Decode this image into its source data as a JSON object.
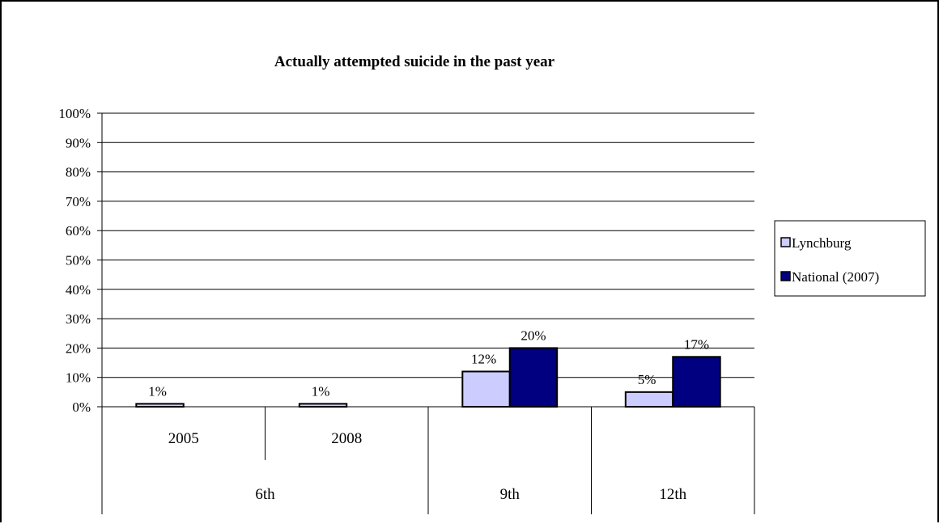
{
  "chart_data": {
    "type": "bar",
    "title": "Actually attempted suicide in the past year",
    "xlabel": "",
    "ylabel": "",
    "ylim": [
      0,
      100
    ],
    "y_ticks": [
      "0%",
      "10%",
      "20%",
      "30%",
      "40%",
      "50%",
      "60%",
      "70%",
      "80%",
      "90%",
      "100%"
    ],
    "grid": true,
    "legend_position": "right",
    "categories": [
      {
        "group": "6th",
        "label": "2005"
      },
      {
        "group": "6th",
        "label": "2008"
      },
      {
        "group": "9th",
        "label": ""
      },
      {
        "group": "12th",
        "label": ""
      }
    ],
    "groups": [
      "6th",
      "9th",
      "12th"
    ],
    "series": [
      {
        "name": "Lynchburg",
        "color": "#ccccff",
        "values": [
          1,
          1,
          12,
          5
        ],
        "labels": [
          "1%",
          "1%",
          "12%",
          "5%"
        ]
      },
      {
        "name": "National (2007)",
        "color": "#000080",
        "values": [
          null,
          null,
          20,
          17
        ],
        "labels": [
          "",
          "",
          "20%",
          "17%"
        ]
      }
    ]
  }
}
